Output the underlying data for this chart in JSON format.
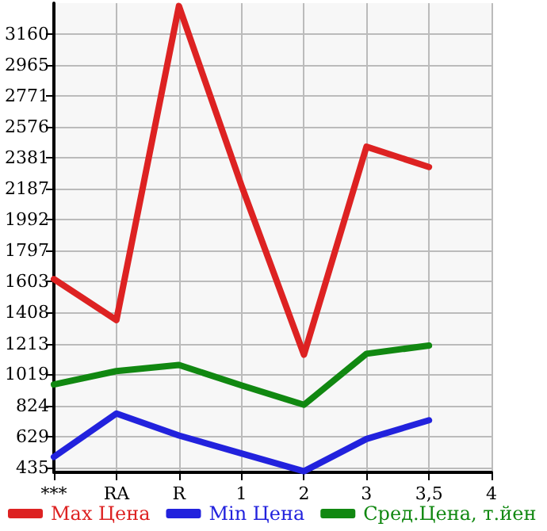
{
  "chart_data": {
    "type": "line",
    "categories": [
      "***",
      "RA",
      "R",
      "1",
      "2",
      "3",
      "3,5",
      "4"
    ],
    "series": [
      {
        "name": "Max Цена",
        "color": "#dd2222",
        "values": [
          1619,
          1361,
          3337,
          2208,
          1143,
          2452,
          2324,
          null
        ]
      },
      {
        "name": "Min Цена",
        "color": "#2222dd",
        "values": [
          500,
          773,
          635,
          522,
          410,
          613,
          731,
          null
        ]
      },
      {
        "name": "Сред.Цена, т.йен",
        "color": "#118811",
        "values": [
          956,
          1040,
          1079,
          950,
          828,
          1149,
          1201,
          null
        ]
      }
    ],
    "ylim": [
      403,
      3355
    ],
    "yticks": [
      435,
      629,
      824,
      1019,
      1213,
      1408,
      1603,
      1797,
      1992,
      2187,
      2381,
      2576,
      2771,
      2965,
      3160
    ],
    "grid": true,
    "legend": "bottom",
    "marker": "none",
    "line_style": "solid"
  }
}
